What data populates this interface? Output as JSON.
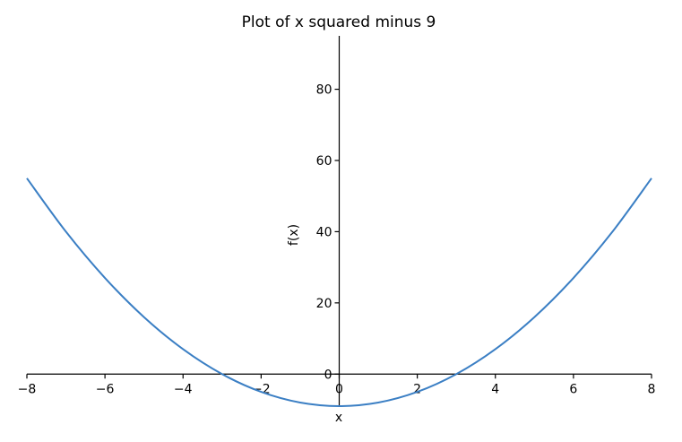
{
  "chart_data": {
    "type": "line",
    "title": "Plot of x squared minus 9",
    "xlabel": "x",
    "ylabel": "f(x)",
    "xlim": [
      -8,
      8
    ],
    "ylim": [
      -9,
      95
    ],
    "x_ticks": [
      -8,
      -6,
      -4,
      -2,
      0,
      2,
      4,
      6,
      8
    ],
    "y_ticks": [
      0,
      20,
      40,
      60,
      80
    ],
    "series": [
      {
        "color": "#3b7fc4",
        "x": [
          -8,
          -7,
          -6,
          -5,
          -4,
          -3,
          -2,
          -1,
          0,
          1,
          2,
          3,
          4,
          5,
          6,
          7,
          8
        ],
        "y": [
          55,
          40,
          27,
          16,
          7,
          0,
          -5,
          -8,
          -9,
          -8,
          -5,
          0,
          7,
          16,
          27,
          40,
          55
        ]
      }
    ],
    "grid": false,
    "spines": "centered"
  }
}
